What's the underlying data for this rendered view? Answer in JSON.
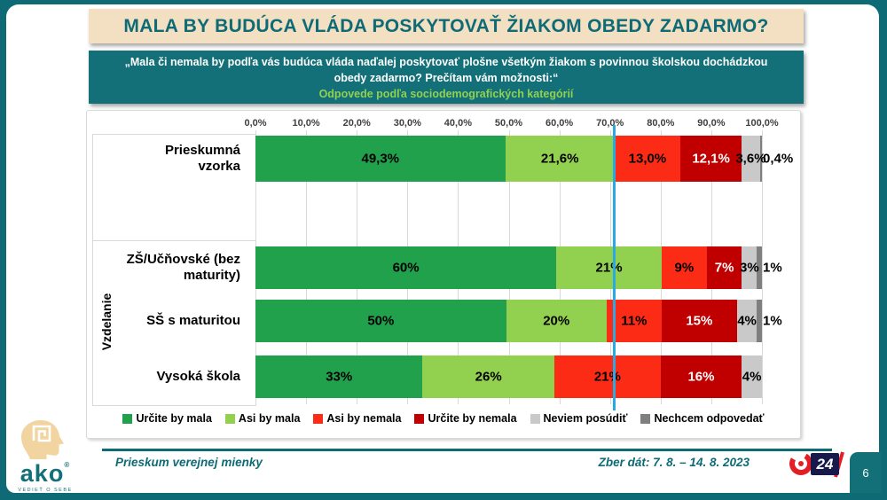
{
  "slide": {
    "title": "MALA BY BUDÚCA VLÁDA POSKYTOVAŤ ŽIAKOM OBEDY ZADARMO?",
    "subtitle_question": "„Mala či nemala by podľa vás budúca vláda naďalej poskytovať plošne všetkým žiakom s povinnou školskou dochádzkou obedy zadarmo? Prečítam vám možnosti:“",
    "subtitle_note": "Odpovede podľa sociodemografických kategórií",
    "page_number": "6"
  },
  "footer": {
    "left_text": "Prieskum verejnej mienky",
    "right_text": "Zber dát: 7. 8. – 14. 8. 2023",
    "ako_logo_text": "ako",
    "ako_logo_tagline": "VEDIEŤ O SEBE",
    "tv_logo_text": "24"
  },
  "colors": {
    "frame_teal": "#0E6B76",
    "band_teal": "#137079",
    "title_cream": "#F3DFC2",
    "accent_green": "#92D050",
    "reference_line_blue": "#2BAAE2"
  },
  "chart_data": {
    "type": "bar",
    "orientation": "horizontal",
    "stacked": true,
    "unit": "percent",
    "xlim": [
      0,
      100
    ],
    "grid": true,
    "legend_position": "bottom",
    "x_ticks": [
      "0,0%",
      "10,0%",
      "20,0%",
      "30,0%",
      "40,0%",
      "50,0%",
      "60,0%",
      "70,0%",
      "80,0%",
      "90,0%",
      "100,0%"
    ],
    "group_label": "Vzdelanie",
    "categories": [
      "Prieskumná vzorka",
      "ZŠ/Učňovské (bez maturity)",
      "SŠ s maturitou",
      "Vysoká škola"
    ],
    "series": [
      {
        "name": "Určite by mala",
        "color": "#21A14B",
        "label_color": "#000000",
        "values": [
          49.3,
          60,
          50,
          33
        ],
        "labels": [
          "49,3%",
          "60%",
          "50%",
          "33%"
        ]
      },
      {
        "name": "Asi by mala",
        "color": "#92D050",
        "label_color": "#000000",
        "values": [
          21.6,
          21,
          20,
          26
        ],
        "labels": [
          "21,6%",
          "21%",
          "20%",
          "26%"
        ]
      },
      {
        "name": "Asi by nemala",
        "color": "#FB2B16",
        "label_color": "#000000",
        "values": [
          13.0,
          9,
          11,
          21
        ],
        "labels": [
          "13,0%",
          "9%",
          "11%",
          "21%"
        ]
      },
      {
        "name": "Určite by nemala",
        "color": "#C00000",
        "label_color": "#FFFFFF",
        "values": [
          12.1,
          7,
          15,
          16
        ],
        "labels": [
          "12,1%",
          "7%",
          "15%",
          "16%"
        ]
      },
      {
        "name": "Neviem posúdiť",
        "color": "#C9C9C9",
        "label_color": "#000000",
        "values": [
          3.6,
          3,
          4,
          4
        ],
        "labels": [
          "3,6%",
          "3%",
          "4%",
          "4%"
        ]
      },
      {
        "name": "Nechcem odpovedať",
        "color": "#7F7F7F",
        "label_color": "#000000",
        "values": [
          0.4,
          1,
          1,
          0
        ],
        "labels": [
          "0,4%",
          "1%",
          "1%",
          ""
        ]
      }
    ],
    "reference_line": {
      "x": 70.9,
      "color": "#2BAAE2"
    }
  }
}
